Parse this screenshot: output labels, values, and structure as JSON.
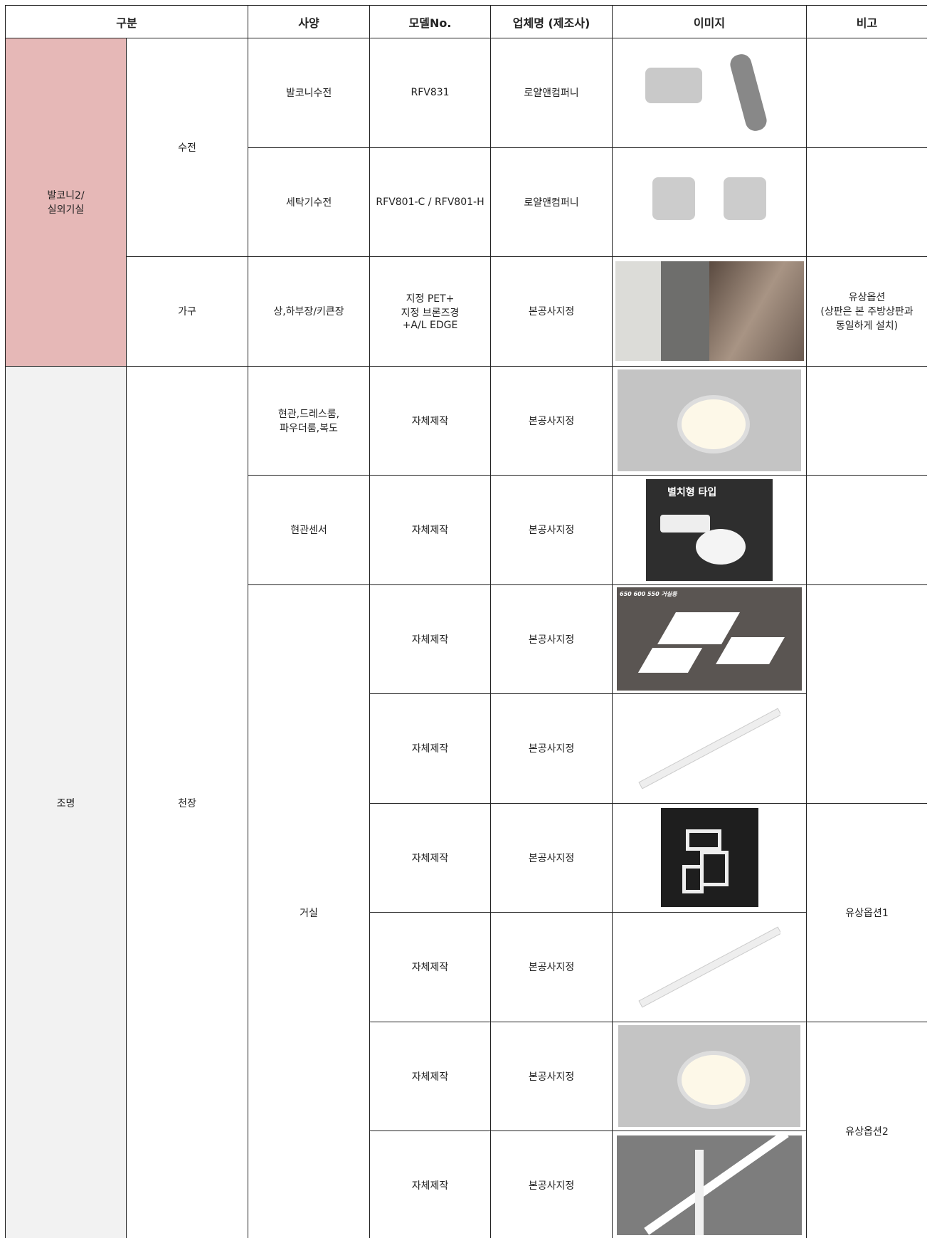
{
  "header": [
    "구분",
    "사양",
    "모델No.",
    "업체명 (제조사)",
    "이미지",
    "비고"
  ],
  "rows": [
    [
      "발코니2/\n실외기실",
      "수전",
      "발코니수전",
      "RFV831",
      "로얄앤컴퍼니"
    ],
    [
      "세탁기수전",
      "RFV801-C / RFV801-H",
      "로얄앤컴퍼니"
    ],
    [
      "가구",
      "상,하부장/키큰장",
      "지정 PET+\n지정 브론즈경\n+A/L EDGE",
      "본공사지정",
      "유상옵션\n(상판은 본 주방상판과\n동일하게 설치)"
    ],
    [
      "조명",
      "천장",
      "현관,드레스룸,\n파우더룸,복도",
      "자체제작",
      "본공사지정"
    ],
    [
      "현관센서",
      "자체제작",
      "본공사지정"
    ],
    [
      "거실",
      "자체제작",
      "본공사지정"
    ],
    [
      "자체제작",
      "본공사지정"
    ],
    [
      "자체제작",
      "본공사지정",
      "유상옵션1"
    ],
    [
      "자체제작",
      "본공사지정"
    ],
    [
      "자체제작",
      "본공사지정",
      "유상옵션2"
    ],
    [
      "자체제작",
      "본공사지정"
    ]
  ],
  "image_texts": [
    "별치형 타입",
    "650 600 550 거실등"
  ]
}
